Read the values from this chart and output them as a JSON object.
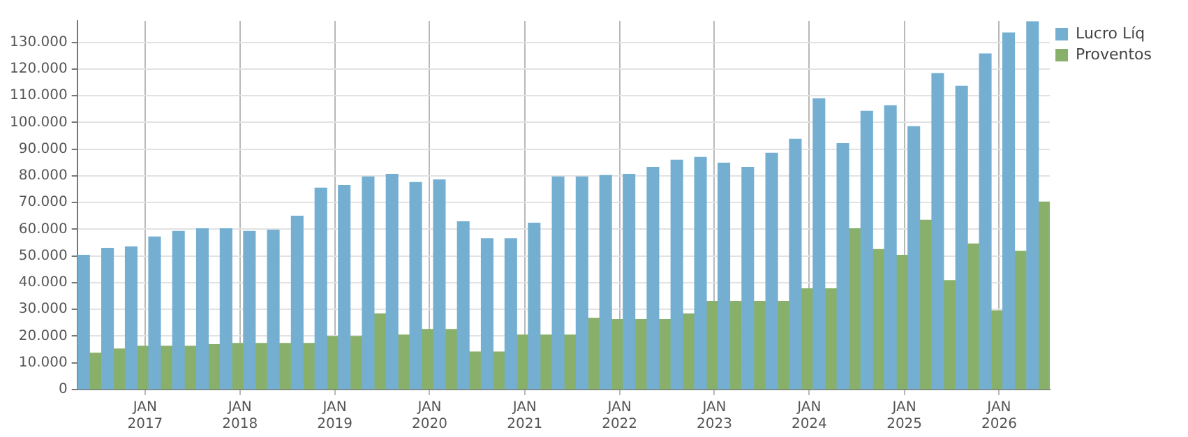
{
  "chart_data": {
    "type": "bar",
    "x": [
      "2016-06",
      "2016-09",
      "2016-12",
      "2017-03",
      "2017-06",
      "2017-09",
      "2017-12",
      "2018-03",
      "2018-06",
      "2018-09",
      "2018-12",
      "2019-03",
      "2019-06",
      "2019-09",
      "2019-12",
      "2020-03",
      "2020-06",
      "2020-09",
      "2020-12",
      "2021-03",
      "2021-06",
      "2021-09",
      "2021-12",
      "2022-03",
      "2022-06",
      "2022-09",
      "2022-12",
      "2023-03",
      "2023-06",
      "2023-09",
      "2023-12",
      "2024-03",
      "2024-06",
      "2024-09",
      "2024-12",
      "2025-03",
      "2025-06",
      "2025-09",
      "2025-12",
      "2026-03",
      "2026-06"
    ],
    "series": [
      {
        "name": "Lucro Líq",
        "color": "#74afd1",
        "values": [
          50300,
          52900,
          53400,
          57100,
          59200,
          60200,
          60200,
          59200,
          59700,
          64900,
          75400,
          76400,
          79600,
          80600,
          77500,
          78500,
          62800,
          56500,
          56500,
          62300,
          79600,
          79600,
          80100,
          80600,
          83200,
          85900,
          86900,
          84800,
          83200,
          88500,
          93700,
          108900,
          92100,
          104200,
          106300,
          98400,
          118300,
          113600,
          125700,
          133500,
          137700
        ]
      },
      {
        "name": "Proventos",
        "color": "#88b06a",
        "values": [
          13600,
          15200,
          16200,
          16200,
          16200,
          16800,
          17300,
          17300,
          17300,
          17300,
          19900,
          19900,
          28300,
          20400,
          22500,
          22500,
          14100,
          14100,
          20400,
          20400,
          20400,
          26700,
          26200,
          26200,
          26200,
          28300,
          33000,
          33000,
          33000,
          33000,
          37700,
          37700,
          60200,
          52400,
          50300,
          63400,
          40800,
          54500,
          29500,
          51800,
          70200
        ]
      }
    ],
    "xlim": [
      "2016-04-15",
      "2026-07-15"
    ],
    "xticks": [
      {
        "value": "2017-01",
        "label": "JAN\n2017"
      },
      {
        "value": "2018-01",
        "label": "JAN\n2018"
      },
      {
        "value": "2019-01",
        "label": "JAN\n2019"
      },
      {
        "value": "2020-01",
        "label": "JAN\n2020"
      },
      {
        "value": "2021-01",
        "label": "JAN\n2021"
      },
      {
        "value": "2022-01",
        "label": "JAN\n2022"
      },
      {
        "value": "2023-01",
        "label": "JAN\n2023"
      },
      {
        "value": "2024-01",
        "label": "JAN\n2024"
      },
      {
        "value": "2025-01",
        "label": "JAN\n2025"
      },
      {
        "value": "2026-01",
        "label": "JAN\n2026"
      }
    ],
    "ylim": [
      0,
      138000
    ],
    "yticks": [
      {
        "value": 0,
        "label": "0"
      },
      {
        "value": 10000,
        "label": "10.000"
      },
      {
        "value": 20000,
        "label": "20.000"
      },
      {
        "value": 30000,
        "label": "30.000"
      },
      {
        "value": 40000,
        "label": "40.000"
      },
      {
        "value": 50000,
        "label": "50.000"
      },
      {
        "value": 60000,
        "label": "60.000"
      },
      {
        "value": 70000,
        "label": "70.000"
      },
      {
        "value": 80000,
        "label": "80.000"
      },
      {
        "value": 90000,
        "label": "90.000"
      },
      {
        "value": 100000,
        "label": "100.000"
      },
      {
        "value": 110000,
        "label": "110.000"
      },
      {
        "value": 120000,
        "label": "120.000"
      },
      {
        "value": 130000,
        "label": "130.000"
      }
    ],
    "grid": true,
    "legend": "top right"
  }
}
